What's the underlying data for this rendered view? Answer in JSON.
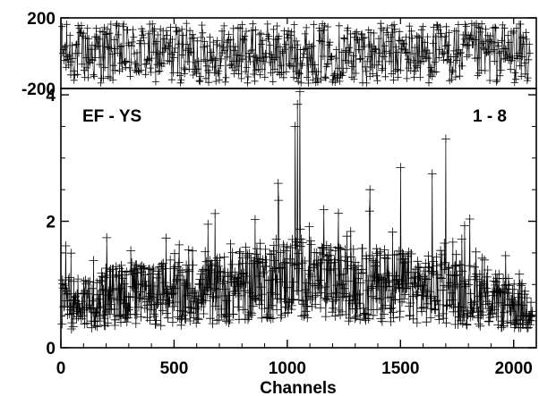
{
  "chart_data": [
    {
      "panel": "top",
      "type": "scatter",
      "marker": "plus",
      "connected": true,
      "xlim": [
        0,
        2100
      ],
      "ylim": [
        -200,
        200
      ],
      "yticks": [
        200,
        -200
      ],
      "ytick_labels": [
        "200",
        "-200"
      ],
      "xticks": [],
      "grid": false,
      "points_approx": 2048,
      "y_approx_range": [
        -170,
        180
      ],
      "color": "#000000"
    },
    {
      "panel": "bottom",
      "type": "scatter",
      "marker": "plus",
      "connected": true,
      "xlim": [
        0,
        2100
      ],
      "ylim": [
        0,
        4.1
      ],
      "yticks": [
        0,
        2,
        4
      ],
      "ytick_labels": [
        "0",
        "2",
        "4"
      ],
      "xticks": [
        0,
        500,
        1000,
        1500,
        2000
      ],
      "xtick_labels": [
        "0",
        "500",
        "1000",
        "1500",
        "2000"
      ],
      "xlabel": "Channels",
      "ylabel": "",
      "grid": false,
      "annotations": [
        "EF - YS",
        "1 - 8"
      ],
      "points_approx": 2048,
      "baseline_envelope": [
        {
          "x": 0,
          "y": 0.8
        },
        {
          "x": 300,
          "y": 1.0
        },
        {
          "x": 600,
          "y": 1.0
        },
        {
          "x": 900,
          "y": 1.25
        },
        {
          "x": 1050,
          "y": 1.3
        },
        {
          "x": 1200,
          "y": 1.2
        },
        {
          "x": 1500,
          "y": 1.15
        },
        {
          "x": 1800,
          "y": 1.0
        },
        {
          "x": 2100,
          "y": 0.7
        }
      ],
      "peaks": [
        {
          "x": 1035,
          "y": 3.5
        },
        {
          "x": 1045,
          "y": 3.85
        },
        {
          "x": 1055,
          "y": 4.05
        },
        {
          "x": 1700,
          "y": 3.3
        },
        {
          "x": 1500,
          "y": 2.85
        },
        {
          "x": 1640,
          "y": 2.75
        },
        {
          "x": 1365,
          "y": 2.5
        },
        {
          "x": 960,
          "y": 2.6
        }
      ],
      "color": "#000000"
    }
  ]
}
